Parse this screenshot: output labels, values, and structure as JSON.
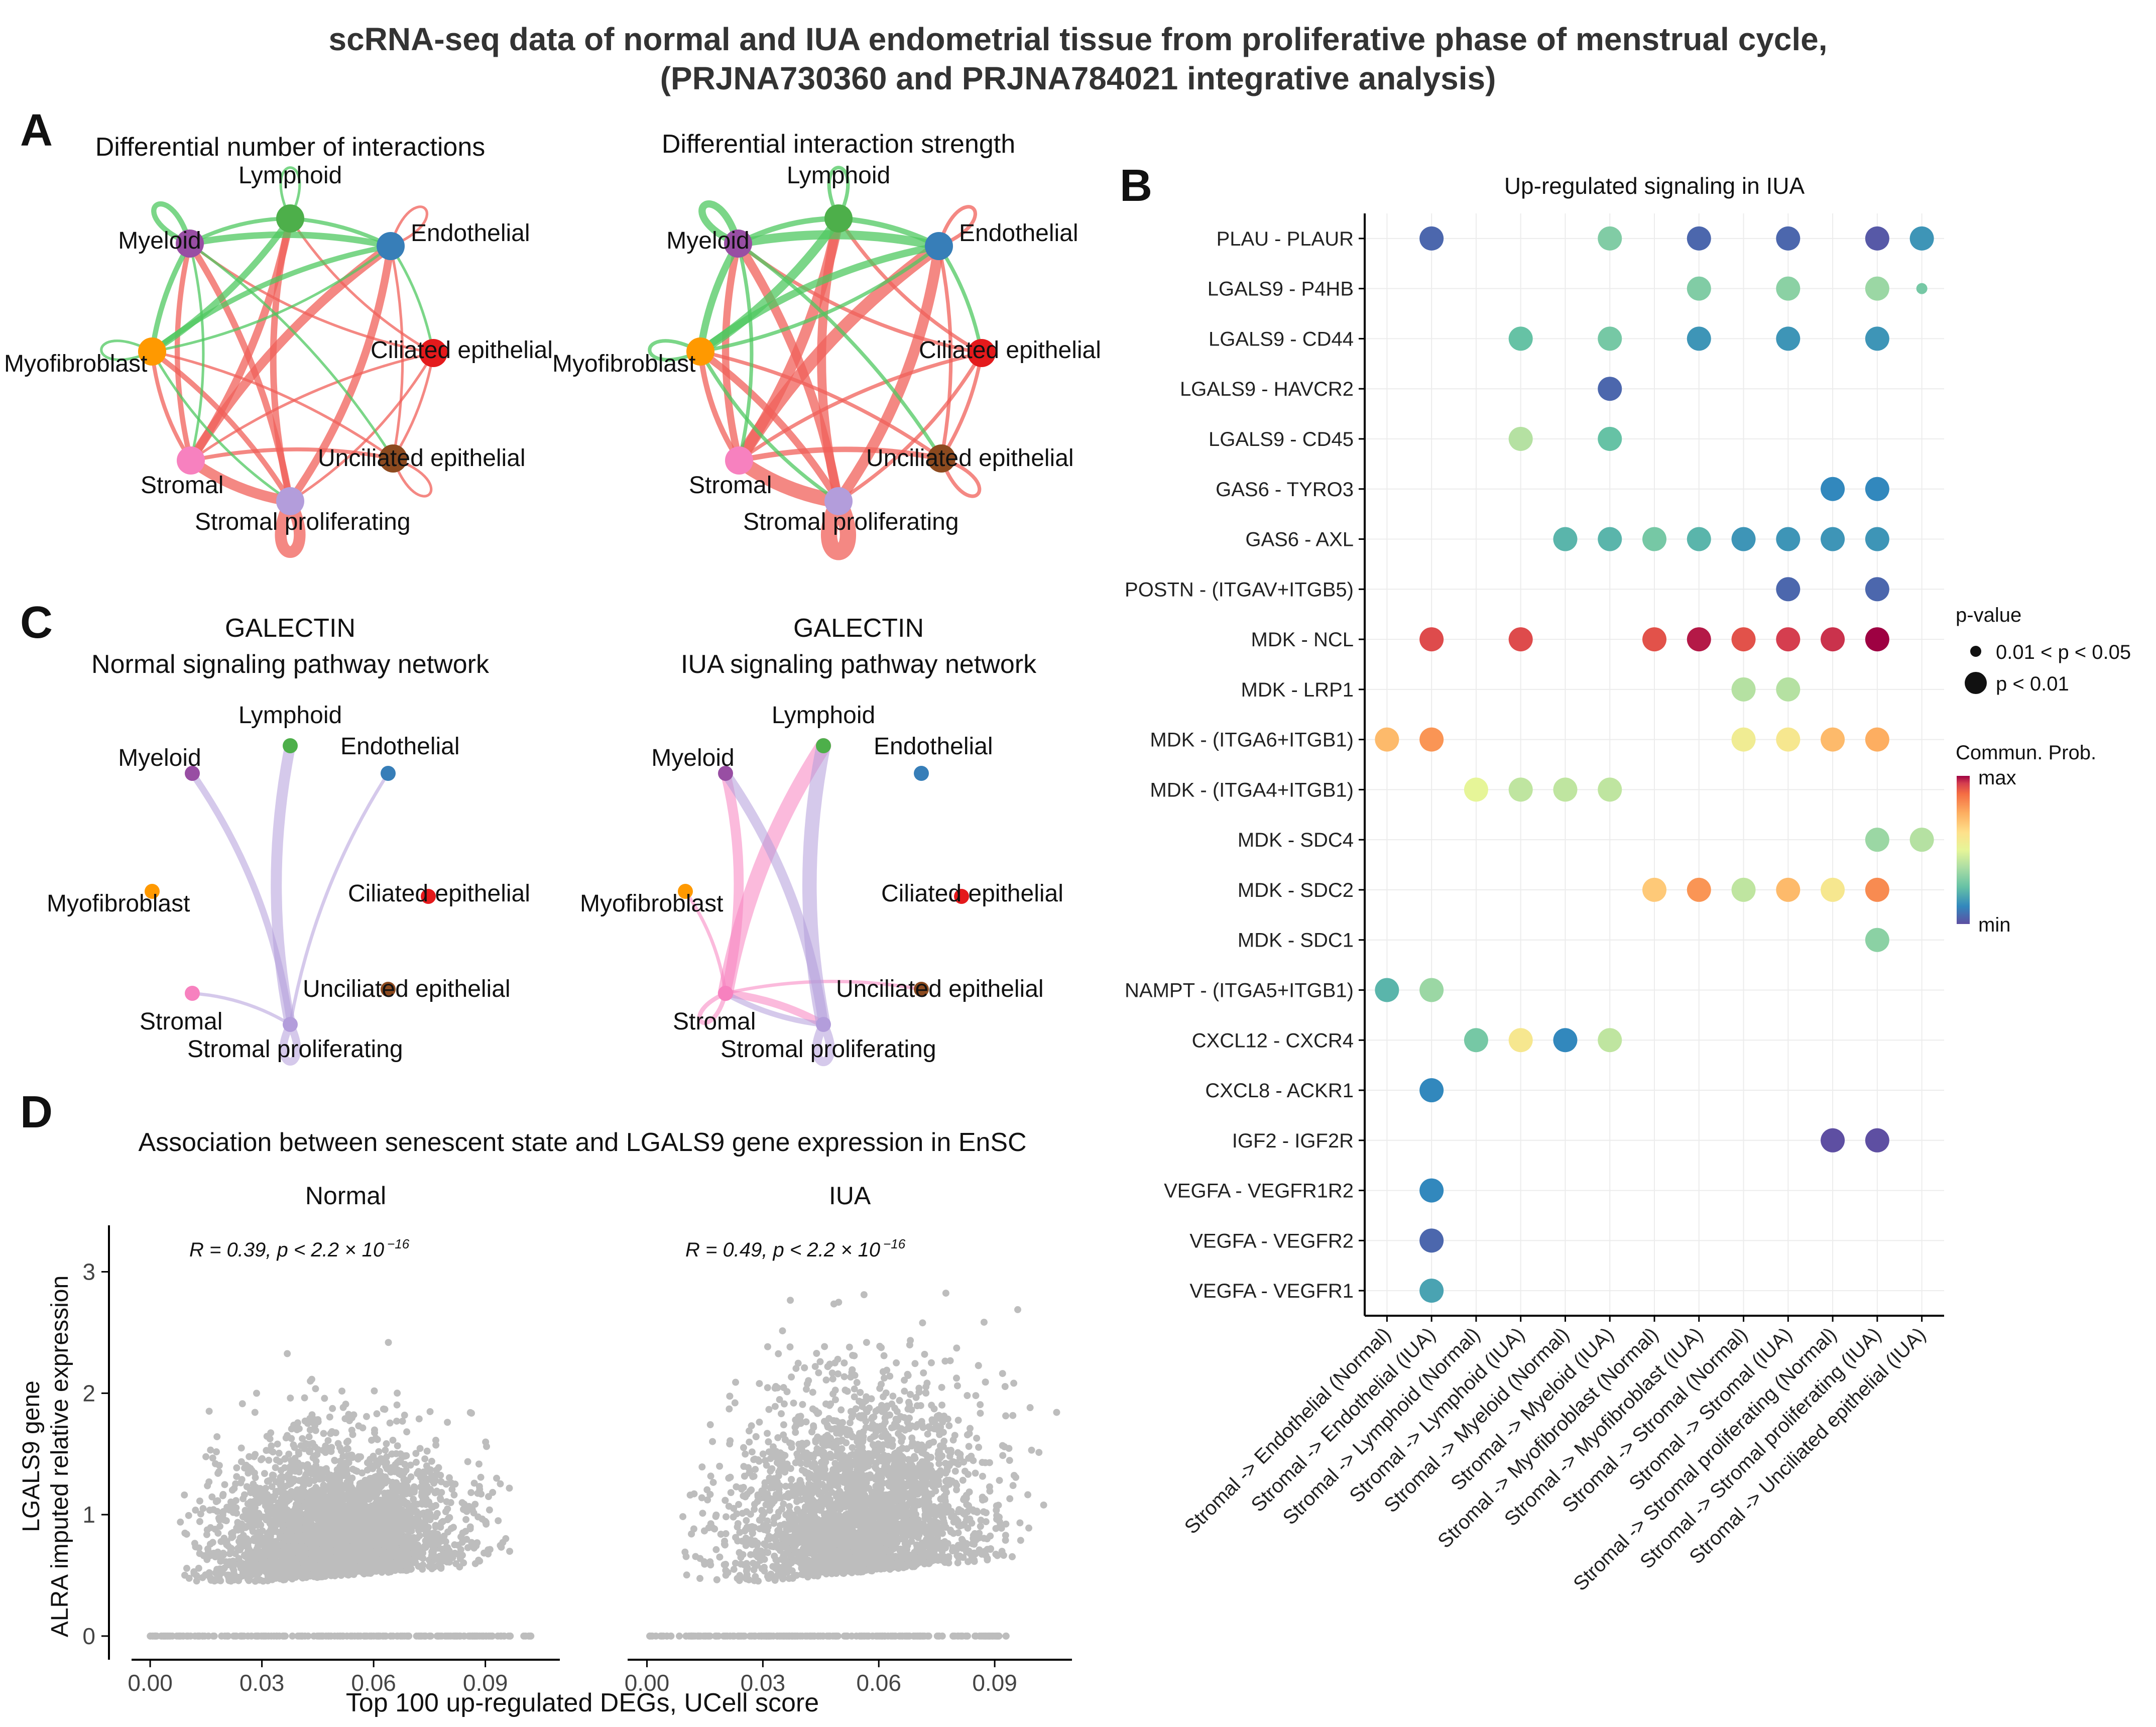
{
  "figure": {
    "title_line1": "scRNA-seq data of normal and IUA endometrial tissue from proliferative phase of menstrual cycle,",
    "title_line2": "(PRJNA730360 and PRJNA784021 integrative analysis)"
  },
  "colors": {
    "Lymphoid": "#4daf4a",
    "Myeloid": "#984ea3",
    "Endothelial": "#377eb8",
    "Myofibroblast": "#ff9900",
    "Ciliated epithelial": "#e41a1c",
    "Unciliated epithelial": "#8c4a1f",
    "Stromal": "#f781bf",
    "Stromal proliferating": "#b39ddb",
    "up_edge": "#f0605a",
    "down_edge": "#4fc860",
    "scatter_point": "#bdbdbd"
  },
  "panelA": {
    "letter": "A",
    "nodes": [
      "Lymphoid",
      "Myeloid",
      "Endothelial",
      "Myofibroblast",
      "Ciliated epithelial",
      "Stromal",
      "Unciliated epithelial",
      "Stromal proliferating"
    ],
    "left_title": "Differential number of interactions",
    "right_title": "Differential interaction strength",
    "edges": [
      {
        "from": "Stromal proliferating",
        "to": "Stromal proliferating",
        "kind": "up",
        "w": 9
      },
      {
        "from": "Stromal",
        "to": "Stromal proliferating",
        "kind": "up",
        "w": 8
      },
      {
        "from": "Stromal",
        "to": "Endothelial",
        "kind": "up",
        "w": 7
      },
      {
        "from": "Stromal proliferating",
        "to": "Endothelial",
        "kind": "up",
        "w": 6
      },
      {
        "from": "Lymphoid",
        "to": "Stromal",
        "kind": "up",
        "w": 6
      },
      {
        "from": "Lymphoid",
        "to": "Stromal proliferating",
        "kind": "up",
        "w": 5
      },
      {
        "from": "Myeloid",
        "to": "Stromal proliferating",
        "kind": "up",
        "w": 5
      },
      {
        "from": "Myeloid",
        "to": "Stromal",
        "kind": "up",
        "w": 4
      },
      {
        "from": "Myofibroblast",
        "to": "Stromal proliferating",
        "kind": "up",
        "w": 4
      },
      {
        "from": "Myofibroblast",
        "to": "Stromal",
        "kind": "up",
        "w": 3
      },
      {
        "from": "Stromal",
        "to": "Unciliated epithelial",
        "kind": "up",
        "w": 3
      },
      {
        "from": "Stromal proliferating",
        "to": "Ciliated epithelial",
        "kind": "up",
        "w": 2
      },
      {
        "from": "Stromal",
        "to": "Ciliated epithelial",
        "kind": "up",
        "w": 2
      },
      {
        "from": "Lymphoid",
        "to": "Ciliated epithelial",
        "kind": "up",
        "w": 2
      },
      {
        "from": "Endothelial",
        "to": "Unciliated epithelial",
        "kind": "up",
        "w": 2
      },
      {
        "from": "Myeloid",
        "to": "Ciliated epithelial",
        "kind": "up",
        "w": 2
      },
      {
        "from": "Myofibroblast",
        "to": "Unciliated epithelial",
        "kind": "up",
        "w": 2
      },
      {
        "from": "Endothelial",
        "to": "Endothelial",
        "kind": "up",
        "w": 2
      },
      {
        "from": "Ciliated epithelial",
        "to": "Unciliated epithelial",
        "kind": "up",
        "w": 2
      },
      {
        "from": "Unciliated epithelial",
        "to": "Unciliated epithelial",
        "kind": "up",
        "w": 2
      },
      {
        "from": "Myeloid",
        "to": "Endothelial",
        "kind": "down",
        "w": 5
      },
      {
        "from": "Myeloid",
        "to": "Myeloid",
        "kind": "down",
        "w": 4
      },
      {
        "from": "Lymphoid",
        "to": "Myofibroblast",
        "kind": "down",
        "w": 5
      },
      {
        "from": "Endothelial",
        "to": "Myofibroblast",
        "kind": "down",
        "w": 4
      },
      {
        "from": "Myofibroblast",
        "to": "Myeloid",
        "kind": "down",
        "w": 4
      },
      {
        "from": "Lymphoid",
        "to": "Myeloid",
        "kind": "down",
        "w": 3
      },
      {
        "from": "Lymphoid",
        "to": "Endothelial",
        "kind": "down",
        "w": 3
      },
      {
        "from": "Lymphoid",
        "to": "Lymphoid",
        "kind": "down",
        "w": 2
      },
      {
        "from": "Myeloid",
        "to": "Unciliated epithelial",
        "kind": "down",
        "w": 2
      },
      {
        "from": "Myofibroblast",
        "to": "Endothelial",
        "kind": "down",
        "w": 2
      },
      {
        "from": "Myofibroblast",
        "to": "Myofibroblast",
        "kind": "down",
        "w": 2
      },
      {
        "from": "Stromal",
        "to": "Myeloid",
        "kind": "down",
        "w": 2
      },
      {
        "from": "Endothelial",
        "to": "Ciliated epithelial",
        "kind": "down",
        "w": 2
      },
      {
        "from": "Myofibroblast",
        "to": "Stromal proliferating",
        "kind": "down",
        "w": 2
      }
    ]
  },
  "panelB": {
    "letter": "B",
    "title": "Up-regulated signaling in IUA",
    "legend_pvalue_title": "p-value",
    "legend_p1": "0.01 < p < 0.05",
    "legend_p2": "p < 0.01",
    "legend_prob_title": "Commun. Prob.",
    "legend_max": "max",
    "legend_min": "min"
  },
  "chart_data": [
    {
      "type": "scatter",
      "panel": "B",
      "subtype": "dot-plot",
      "title": "Up-regulated signaling in IUA",
      "value_meaning": "relative communication probability, 0 = min, 1 = max",
      "rows": [
        "PLAU - PLAUR",
        "LGALS9 - P4HB",
        "LGALS9 - CD44",
        "LGALS9 - HAVCR2",
        "LGALS9 - CD45",
        "GAS6 - TYRO3",
        "GAS6 - AXL",
        "POSTN - (ITGAV+ITGB5)",
        "MDK - NCL",
        "MDK - LRP1",
        "MDK - (ITGA6+ITGB1)",
        "MDK - (ITGA4+ITGB1)",
        "MDK - SDC4",
        "MDK - SDC2",
        "MDK - SDC1",
        "NAMPT - (ITGA5+ITGB1)",
        "CXCL12 - CXCR4",
        "CXCL8 - ACKR1",
        "IGF2 - IGF2R",
        "VEGFA - VEGFR1R2",
        "VEGFA - VEGFR2",
        "VEGFA - VEGFR1"
      ],
      "columns": [
        "Stromal -> Endothelial (Normal)",
        "Stromal -> Endothelial (IUA)",
        "Stromal -> Lymphoid (Normal)",
        "Stromal -> Lymphoid (IUA)",
        "Stromal -> Myeloid (Normal)",
        "Stromal -> Myeloid (IUA)",
        "Stromal -> Myofibroblast (Normal)",
        "Stromal -> Myofibroblast (IUA)",
        "Stromal -> Stromal (Normal)",
        "Stromal -> Stromal (IUA)",
        "Stromal -> Stromal proliferating (Normal)",
        "Stromal -> Stromal proliferating (IUA)",
        "Stromal -> Unciliated epithelial (IUA)"
      ],
      "points": [
        {
          "row": "PLAU - PLAUR",
          "col": 1,
          "value": 0.05,
          "p": "p < 0.01"
        },
        {
          "row": "PLAU - PLAUR",
          "col": 5,
          "value": 0.3,
          "p": "p < 0.01"
        },
        {
          "row": "PLAU - PLAUR",
          "col": 7,
          "value": 0.05,
          "p": "p < 0.01"
        },
        {
          "row": "PLAU - PLAUR",
          "col": 9,
          "value": 0.05,
          "p": "p < 0.01"
        },
        {
          "row": "PLAU - PLAUR",
          "col": 11,
          "value": 0.02,
          "p": "p < 0.01"
        },
        {
          "row": "PLAU - PLAUR",
          "col": 12,
          "value": 0.15,
          "p": "p < 0.01"
        },
        {
          "row": "LGALS9 - P4HB",
          "col": 7,
          "value": 0.3,
          "p": "p < 0.01"
        },
        {
          "row": "LGALS9 - P4HB",
          "col": 9,
          "value": 0.32,
          "p": "p < 0.01"
        },
        {
          "row": "LGALS9 - P4HB",
          "col": 11,
          "value": 0.35,
          "p": "p < 0.01"
        },
        {
          "row": "LGALS9 - P4HB",
          "col": 12,
          "value": 0.28,
          "p": "0.01 < p < 0.05"
        },
        {
          "row": "LGALS9 - CD44",
          "col": 3,
          "value": 0.25,
          "p": "p < 0.01"
        },
        {
          "row": "LGALS9 - CD44",
          "col": 5,
          "value": 0.28,
          "p": "p < 0.01"
        },
        {
          "row": "LGALS9 - CD44",
          "col": 7,
          "value": 0.15,
          "p": "p < 0.01"
        },
        {
          "row": "LGALS9 - CD44",
          "col": 9,
          "value": 0.15,
          "p": "p < 0.01"
        },
        {
          "row": "LGALS9 - CD44",
          "col": 11,
          "value": 0.15,
          "p": "p < 0.01"
        },
        {
          "row": "LGALS9 - HAVCR2",
          "col": 5,
          "value": 0.05,
          "p": "p < 0.01"
        },
        {
          "row": "LGALS9 - CD45",
          "col": 3,
          "value": 0.4,
          "p": "p < 0.01"
        },
        {
          "row": "LGALS9 - CD45",
          "col": 5,
          "value": 0.25,
          "p": "p < 0.01"
        },
        {
          "row": "GAS6 - TYRO3",
          "col": 10,
          "value": 0.12,
          "p": "p < 0.01"
        },
        {
          "row": "GAS6 - TYRO3",
          "col": 11,
          "value": 0.12,
          "p": "p < 0.01"
        },
        {
          "row": "GAS6 - AXL",
          "col": 4,
          "value": 0.22,
          "p": "p < 0.01"
        },
        {
          "row": "GAS6 - AXL",
          "col": 5,
          "value": 0.22,
          "p": "p < 0.01"
        },
        {
          "row": "GAS6 - AXL",
          "col": 6,
          "value": 0.28,
          "p": "p < 0.01"
        },
        {
          "row": "GAS6 - AXL",
          "col": 7,
          "value": 0.22,
          "p": "p < 0.01"
        },
        {
          "row": "GAS6 - AXL",
          "col": 8,
          "value": 0.15,
          "p": "p < 0.01"
        },
        {
          "row": "GAS6 - AXL",
          "col": 9,
          "value": 0.15,
          "p": "p < 0.01"
        },
        {
          "row": "GAS6 - AXL",
          "col": 10,
          "value": 0.15,
          "p": "p < 0.01"
        },
        {
          "row": "GAS6 - AXL",
          "col": 11,
          "value": 0.15,
          "p": "p < 0.01"
        },
        {
          "row": "POSTN - (ITGAV+ITGB5)",
          "col": 9,
          "value": 0.05,
          "p": "p < 0.01"
        },
        {
          "row": "POSTN - (ITGAV+ITGB5)",
          "col": 11,
          "value": 0.05,
          "p": "p < 0.01"
        },
        {
          "row": "MDK - NCL",
          "col": 1,
          "value": 0.93,
          "p": "p < 0.01"
        },
        {
          "row": "MDK - NCL",
          "col": 3,
          "value": 0.93,
          "p": "p < 0.01"
        },
        {
          "row": "MDK - NCL",
          "col": 6,
          "value": 0.92,
          "p": "p < 0.01"
        },
        {
          "row": "MDK - NCL",
          "col": 7,
          "value": 0.98,
          "p": "p < 0.01"
        },
        {
          "row": "MDK - NCL",
          "col": 8,
          "value": 0.92,
          "p": "p < 0.01"
        },
        {
          "row": "MDK - NCL",
          "col": 9,
          "value": 0.95,
          "p": "p < 0.01"
        },
        {
          "row": "MDK - NCL",
          "col": 10,
          "value": 0.96,
          "p": "p < 0.01"
        },
        {
          "row": "MDK - NCL",
          "col": 11,
          "value": 1.0,
          "p": "p < 0.01"
        },
        {
          "row": "MDK - LRP1",
          "col": 8,
          "value": 0.4,
          "p": "p < 0.01"
        },
        {
          "row": "MDK - LRP1",
          "col": 9,
          "value": 0.4,
          "p": "p < 0.01"
        },
        {
          "row": "MDK - (ITGA6+ITGB1)",
          "col": 0,
          "value": 0.72,
          "p": "p < 0.01"
        },
        {
          "row": "MDK - (ITGA6+ITGB1)",
          "col": 1,
          "value": 0.8,
          "p": "p < 0.01"
        },
        {
          "row": "MDK - (ITGA6+ITGB1)",
          "col": 8,
          "value": 0.55,
          "p": "p < 0.01"
        },
        {
          "row": "MDK - (ITGA6+ITGB1)",
          "col": 9,
          "value": 0.58,
          "p": "p < 0.01"
        },
        {
          "row": "MDK - (ITGA6+ITGB1)",
          "col": 10,
          "value": 0.72,
          "p": "p < 0.01"
        },
        {
          "row": "MDK - (ITGA6+ITGB1)",
          "col": 11,
          "value": 0.75,
          "p": "p < 0.01"
        },
        {
          "row": "MDK - (ITGA4+ITGB1)",
          "col": 2,
          "value": 0.5,
          "p": "p < 0.01"
        },
        {
          "row": "MDK - (ITGA4+ITGB1)",
          "col": 3,
          "value": 0.42,
          "p": "p < 0.01"
        },
        {
          "row": "MDK - (ITGA4+ITGB1)",
          "col": 4,
          "value": 0.42,
          "p": "p < 0.01"
        },
        {
          "row": "MDK - (ITGA4+ITGB1)",
          "col": 5,
          "value": 0.42,
          "p": "p < 0.01"
        },
        {
          "row": "MDK - SDC4",
          "col": 11,
          "value": 0.35,
          "p": "p < 0.01"
        },
        {
          "row": "MDK - SDC4",
          "col": 12,
          "value": 0.4,
          "p": "p < 0.01"
        },
        {
          "row": "MDK - SDC2",
          "col": 6,
          "value": 0.68,
          "p": "p < 0.01"
        },
        {
          "row": "MDK - SDC2",
          "col": 7,
          "value": 0.8,
          "p": "p < 0.01"
        },
        {
          "row": "MDK - SDC2",
          "col": 8,
          "value": 0.42,
          "p": "p < 0.01"
        },
        {
          "row": "MDK - SDC2",
          "col": 9,
          "value": 0.72,
          "p": "p < 0.01"
        },
        {
          "row": "MDK - SDC2",
          "col": 10,
          "value": 0.58,
          "p": "p < 0.01"
        },
        {
          "row": "MDK - SDC2",
          "col": 11,
          "value": 0.82,
          "p": "p < 0.01"
        },
        {
          "row": "MDK - SDC1",
          "col": 11,
          "value": 0.32,
          "p": "p < 0.01"
        },
        {
          "row": "NAMPT - (ITGA5+ITGB1)",
          "col": 0,
          "value": 0.22,
          "p": "p < 0.01"
        },
        {
          "row": "NAMPT - (ITGA5+ITGB1)",
          "col": 1,
          "value": 0.35,
          "p": "p < 0.01"
        },
        {
          "row": "CXCL12 - CXCR4",
          "col": 2,
          "value": 0.28,
          "p": "p < 0.01"
        },
        {
          "row": "CXCL12 - CXCR4",
          "col": 3,
          "value": 0.58,
          "p": "p < 0.01"
        },
        {
          "row": "CXCL12 - CXCR4",
          "col": 4,
          "value": 0.12,
          "p": "p < 0.01"
        },
        {
          "row": "CXCL12 - CXCR4",
          "col": 5,
          "value": 0.42,
          "p": "p < 0.01"
        },
        {
          "row": "CXCL8 - ACKR1",
          "col": 1,
          "value": 0.12,
          "p": "p < 0.01"
        },
        {
          "row": "IGF2 - IGF2R",
          "col": 10,
          "value": 0.0,
          "p": "p < 0.01"
        },
        {
          "row": "IGF2 - IGF2R",
          "col": 11,
          "value": 0.0,
          "p": "p < 0.01"
        },
        {
          "row": "VEGFA - VEGFR1R2",
          "col": 1,
          "value": 0.12,
          "p": "p < 0.01"
        },
        {
          "row": "VEGFA - VEGFR2",
          "col": 1,
          "value": 0.05,
          "p": "p < 0.01"
        },
        {
          "row": "VEGFA - VEGFR1",
          "col": 1,
          "value": 0.18,
          "p": "p < 0.01"
        }
      ]
    },
    {
      "type": "scatter",
      "panel": "D",
      "title": "Association between senescent state and LGALS9 gene expression in EnSC",
      "xlabel": "Top 100 up-regulated DEGs, UCell score",
      "ylabel_line1": "LGALS9 gene",
      "ylabel_line2": "ALRA imputed relative expression",
      "xlim": [
        -0.005,
        0.11
      ],
      "ylim": [
        -0.05,
        3.3
      ],
      "xticks": [
        "0.00",
        "0.03",
        "0.06",
        "0.09"
      ],
      "xtick_values": [
        0,
        0.03,
        0.06,
        0.09
      ],
      "yticks": [
        "0",
        "1",
        "2",
        "3"
      ],
      "ytick_values": [
        0,
        1,
        2,
        3
      ],
      "facets": [
        {
          "name": "Normal",
          "annotation": "R = 0.39, p < 2.2 × 10",
          "exponent": "−16",
          "cloud": {
            "x_mean": 0.05,
            "x_sd": 0.016,
            "y_base": 0.45,
            "y_scale": 0.55,
            "x_max": 0.098,
            "y_max": 2.5,
            "zero_x_max": 0.103
          }
        },
        {
          "name": "IUA",
          "annotation": "R = 0.49, p < 2.2 × 10",
          "exponent": "−16",
          "cloud": {
            "x_mean": 0.055,
            "x_sd": 0.016,
            "y_base": 0.45,
            "y_scale": 0.75,
            "x_max": 0.108,
            "y_max": 3.05,
            "zero_x_max": 0.093
          }
        }
      ]
    }
  ],
  "panelC": {
    "letter": "C",
    "pathway": "GALECTIN",
    "left_subtitle": "Normal signaling pathway network",
    "right_subtitle": "IUA signaling pathway network",
    "normal_edges": [
      {
        "from": "Stromal proliferating",
        "to": "Lymphoid",
        "w": 10
      },
      {
        "from": "Stromal proliferating",
        "to": "Myeloid",
        "w": 6
      },
      {
        "from": "Stromal proliferating",
        "to": "Endothelial",
        "w": 3
      },
      {
        "from": "Stromal proliferating",
        "to": "Stromal",
        "w": 3
      },
      {
        "from": "Stromal proliferating",
        "to": "Stromal proliferating",
        "w": 7
      }
    ],
    "iua_edges": [
      {
        "from": "Stromal",
        "to": "Lymphoid",
        "w": 14,
        "src_color": "Stromal"
      },
      {
        "from": "Stromal",
        "to": "Myeloid",
        "w": 9,
        "src_color": "Stromal"
      },
      {
        "from": "Stromal",
        "to": "Stromal proliferating",
        "w": 7,
        "src_color": "Stromal"
      },
      {
        "from": "Stromal",
        "to": "Myofibroblast",
        "w": 3,
        "src_color": "Stromal"
      },
      {
        "from": "Stromal",
        "to": "Unciliated epithelial",
        "w": 3,
        "src_color": "Stromal"
      },
      {
        "from": "Stromal",
        "to": "Stromal",
        "w": 4,
        "src_color": "Stromal"
      },
      {
        "from": "Stromal proliferating",
        "to": "Lymphoid",
        "w": 13,
        "src_color": "Stromal proliferating"
      },
      {
        "from": "Stromal proliferating",
        "to": "Myeloid",
        "w": 9,
        "src_color": "Stromal proliferating"
      },
      {
        "from": "Stromal proliferating",
        "to": "Stromal",
        "w": 5,
        "src_color": "Stromal proliferating"
      },
      {
        "from": "Stromal proliferating",
        "to": "Stromal proliferating",
        "w": 8,
        "src_color": "Stromal proliferating"
      }
    ]
  },
  "panelD": {
    "letter": "D"
  }
}
